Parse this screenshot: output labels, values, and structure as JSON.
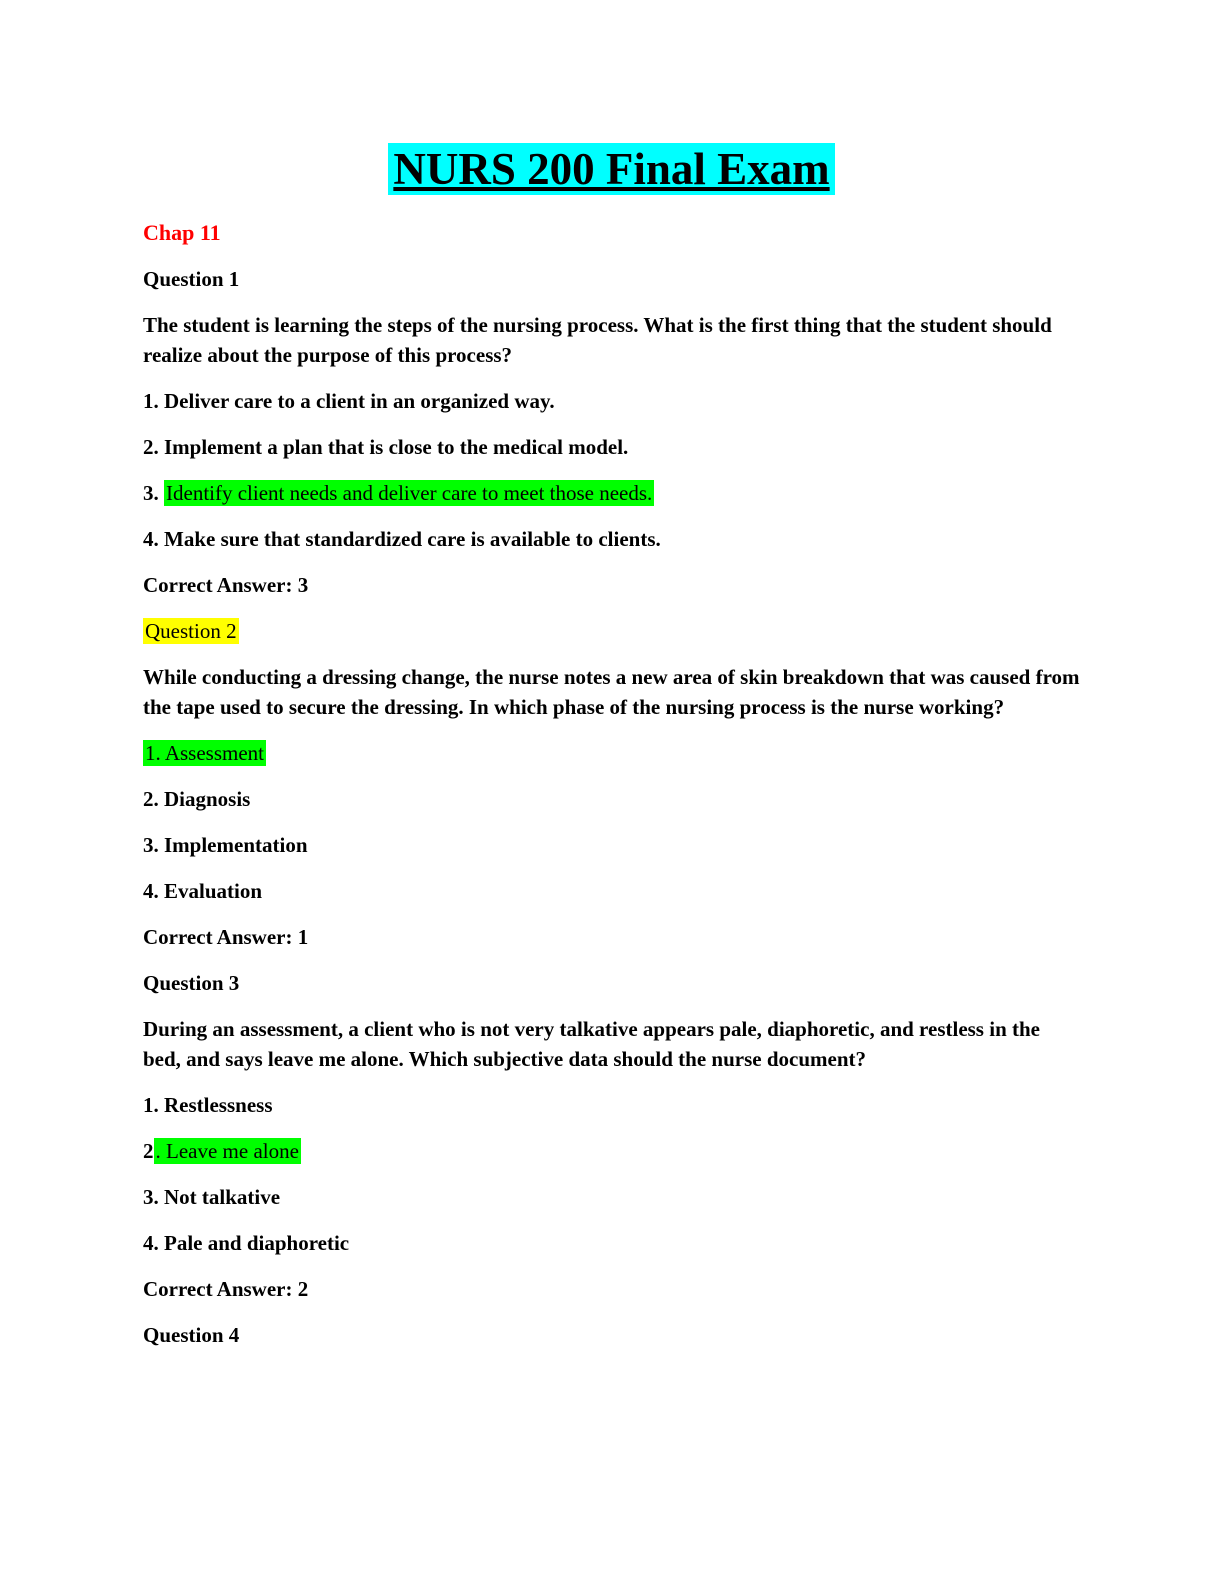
{
  "colors": {
    "title_highlight": "#00ffff",
    "question_highlight": "#ffff00",
    "answer_highlight": "#00ff00",
    "chapter_text": "#ff0000"
  },
  "title": {
    "text": "NURS 200 Final Exam"
  },
  "chapter": {
    "text": "Chap 11"
  },
  "questions": [
    {
      "label": "Question 1",
      "text": "The student is learning the steps of the nursing process. What is the first thing that the student should realize about the purpose of this process?",
      "options": [
        {
          "segments": [
            {
              "text": "1. Deliver care to a client in an organized way."
            }
          ]
        },
        {
          "segments": [
            {
              "text": "2. Implement a plan that is close to the medical model."
            }
          ]
        },
        {
          "segments": [
            {
              "text": "3. "
            },
            {
              "text": "Identify client needs and deliver care to meet those needs.",
              "highlight": "green"
            }
          ]
        },
        {
          "segments": [
            {
              "text": "4. Make sure that standardized care is available to clients."
            }
          ]
        }
      ],
      "correct_answer": "Correct Answer: 3"
    },
    {
      "label": "Question 2",
      "label_highlight": "yellow",
      "text": "While conducting a dressing change, the nurse notes a new area of skin breakdown that was caused from the tape used to secure the dressing. In which phase of the nursing process is the nurse working?",
      "options": [
        {
          "segments": [
            {
              "text": "1. Assessment",
              "highlight": "green"
            }
          ]
        },
        {
          "segments": [
            {
              "text": "2. Diagnosis"
            }
          ]
        },
        {
          "segments": [
            {
              "text": "3. Implementation"
            }
          ]
        },
        {
          "segments": [
            {
              "text": "4. Evaluation"
            }
          ]
        }
      ],
      "correct_answer": "Correct Answer: 1"
    },
    {
      "label": "Question 3",
      "text": "During an assessment, a client who is not very talkative appears pale, diaphoretic, and restless in the bed, and says leave me alone. Which subjective data should the nurse document?",
      "options": [
        {
          "segments": [
            {
              "text": "1. Restlessness"
            }
          ]
        },
        {
          "segments": [
            {
              "text": "2"
            },
            {
              "text": ". Leave me alone",
              "highlight": "green"
            }
          ]
        },
        {
          "segments": [
            {
              "text": "3. Not talkative"
            }
          ]
        },
        {
          "segments": [
            {
              "text": "4. Pale and diaphoretic"
            }
          ]
        }
      ],
      "correct_answer": "Correct Answer: 2"
    },
    {
      "label": "Question 4"
    }
  ]
}
